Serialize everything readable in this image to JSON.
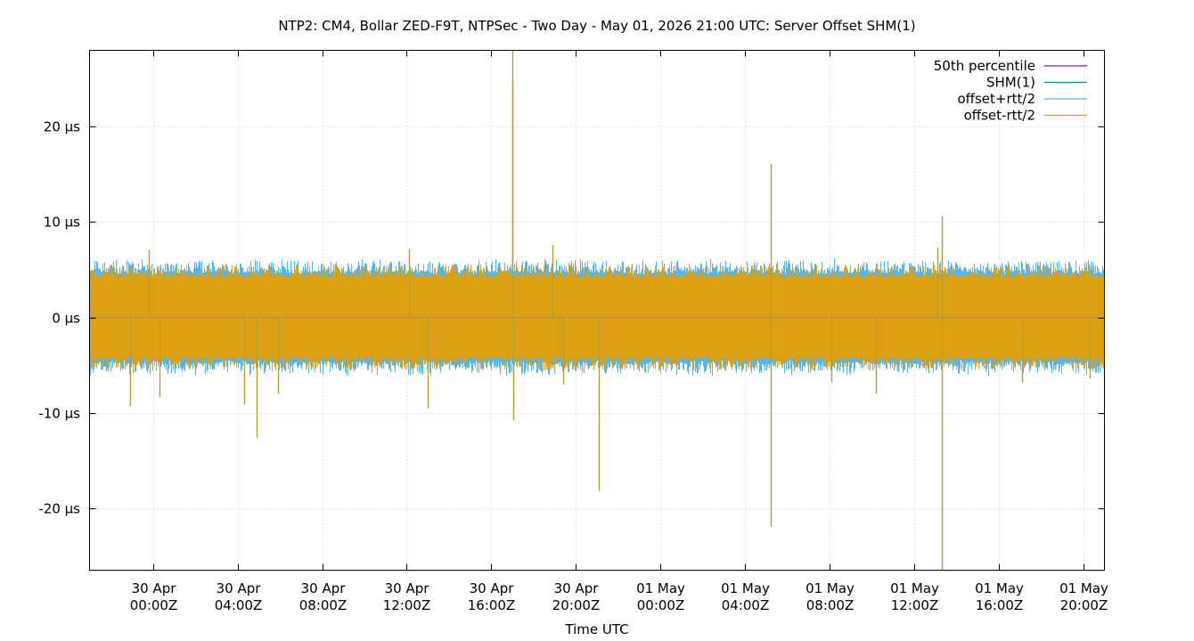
{
  "chart_data": {
    "type": "line",
    "title": "NTP2: CM4, Bollar ZED-F9T, NTPSec - Two Day - May 01, 2026 21:00 UTC: Server Offset SHM(1)",
    "xlabel": "Time UTC",
    "ylabel": "",
    "x_unit": "hours since window start (29 Apr 2026 21:00Z)",
    "xlim": [
      0,
      48
    ],
    "ylim": [
      -26.5,
      28
    ],
    "grid": true,
    "legend_position": "top-right",
    "y_ticks": [
      {
        "value": 20,
        "label": "20 µs"
      },
      {
        "value": 10,
        "label": "10 µs"
      },
      {
        "value": 0,
        "label": "0 µs"
      },
      {
        "value": -10,
        "label": "-10 µs"
      },
      {
        "value": -20,
        "label": "-20 µs"
      }
    ],
    "x_ticks": [
      {
        "value": 3,
        "line1": "30 Apr",
        "line2": "00:00Z"
      },
      {
        "value": 7,
        "line1": "30 Apr",
        "line2": "04:00Z"
      },
      {
        "value": 11,
        "line1": "30 Apr",
        "line2": "08:00Z"
      },
      {
        "value": 15,
        "line1": "30 Apr",
        "line2": "12:00Z"
      },
      {
        "value": 19,
        "line1": "30 Apr",
        "line2": "16:00Z"
      },
      {
        "value": 23,
        "line1": "30 Apr",
        "line2": "20:00Z"
      },
      {
        "value": 27,
        "line1": "01 May",
        "line2": "00:00Z"
      },
      {
        "value": 31,
        "line1": "01 May",
        "line2": "04:00Z"
      },
      {
        "value": 35,
        "line1": "01 May",
        "line2": "08:00Z"
      },
      {
        "value": 39,
        "line1": "01 May",
        "line2": "12:00Z"
      },
      {
        "value": 43,
        "line1": "01 May",
        "line2": "16:00Z"
      },
      {
        "value": 47,
        "line1": "01 May",
        "line2": "20:00Z"
      }
    ],
    "series": [
      {
        "name": "50th percentile",
        "color": "#8b1a8b",
        "x": [
          0,
          48
        ],
        "values": [
          0,
          0
        ]
      },
      {
        "name": "SHM(1)",
        "color": "#009e73",
        "x": [
          0,
          48
        ],
        "values": [
          0,
          0
        ]
      },
      {
        "name": "offset+rtt/2",
        "color": "#56b4e9",
        "band": {
          "typical_high": 4.5,
          "typical_low": -4.5,
          "envelope_high": 5.8,
          "envelope_low": -5.8
        }
      },
      {
        "name": "offset-rtt/2",
        "color": "#e69f00",
        "band": {
          "typical_high": 4.2,
          "typical_low": -4.2,
          "envelope_high": 5.5,
          "envelope_low": -5.5
        }
      }
    ],
    "spikes": [
      {
        "x": 1.9,
        "y": -9.3
      },
      {
        "x": 3.3,
        "y": -8.4
      },
      {
        "x": 2.8,
        "y": 7.1
      },
      {
        "x": 7.3,
        "y": -9.1
      },
      {
        "x": 7.9,
        "y": -12.6
      },
      {
        "x": 8.9,
        "y": -8.0
      },
      {
        "x": 15.1,
        "y": 7.2
      },
      {
        "x": 16.0,
        "y": -9.5
      },
      {
        "x": 20.0,
        "y": 28.0
      },
      {
        "x": 20.0,
        "y": 24.7
      },
      {
        "x": 20.05,
        "y": -10.8
      },
      {
        "x": 21.9,
        "y": 7.6
      },
      {
        "x": 22.4,
        "y": -7.0
      },
      {
        "x": 24.1,
        "y": -18.2
      },
      {
        "x": 32.2,
        "y": 16.1
      },
      {
        "x": 32.2,
        "y": -21.9
      },
      {
        "x": 35.1,
        "y": -6.8
      },
      {
        "x": 37.2,
        "y": -8.0
      },
      {
        "x": 40.3,
        "y": 10.6
      },
      {
        "x": 40.3,
        "y": -26.5
      },
      {
        "x": 40.1,
        "y": 7.3
      },
      {
        "x": 44.1,
        "y": -6.8
      },
      {
        "x": 47.3,
        "y": -6.4
      }
    ]
  }
}
